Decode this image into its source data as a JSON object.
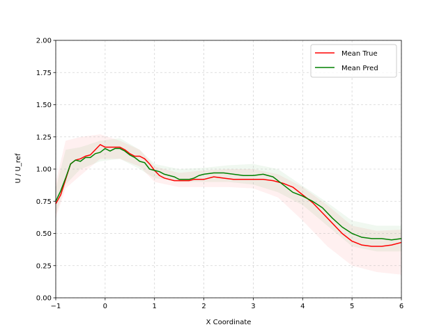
{
  "chart_data": {
    "type": "line",
    "title": "",
    "xlabel": "X Coordinate",
    "ylabel": "U / U_ref",
    "xlim": [
      -1,
      6
    ],
    "ylim": [
      0,
      2
    ],
    "xticks": [
      -1,
      0,
      1,
      2,
      3,
      4,
      5,
      6
    ],
    "xtick_labels": [
      "−1",
      "0",
      "1",
      "2",
      "3",
      "4",
      "5",
      "6"
    ],
    "yticks": [
      0,
      0.25,
      0.5,
      0.75,
      1.0,
      1.25,
      1.5,
      1.75,
      2.0
    ],
    "ytick_labels": [
      "0.00",
      "0.25",
      "0.50",
      "0.75",
      "1.00",
      "1.25",
      "1.50",
      "1.75",
      "2.00"
    ],
    "grid": true,
    "legend_position": "top-right",
    "background_bands": [
      {
        "color": "#ff0000",
        "opacity": 0.06,
        "upper": [
          [
            -1,
            0.9
          ],
          [
            -0.8,
            1.22
          ],
          [
            -0.5,
            1.25
          ],
          [
            -0.1,
            1.27
          ],
          [
            0.3,
            1.22
          ],
          [
            0.7,
            1.15
          ],
          [
            1.0,
            1.02
          ],
          [
            1.5,
            0.97
          ],
          [
            2.0,
            0.99
          ],
          [
            2.5,
            1.0
          ],
          [
            3.0,
            1.0
          ],
          [
            3.5,
            0.96
          ],
          [
            4.0,
            0.86
          ],
          [
            4.5,
            0.72
          ],
          [
            5.0,
            0.56
          ],
          [
            5.5,
            0.52
          ],
          [
            6.0,
            0.53
          ]
        ],
        "lower": [
          [
            -1,
            0.62
          ],
          [
            -0.8,
            0.85
          ],
          [
            -0.5,
            0.95
          ],
          [
            -0.1,
            1.08
          ],
          [
            0.3,
            1.08
          ],
          [
            0.7,
            1.02
          ],
          [
            1.0,
            0.9
          ],
          [
            1.5,
            0.86
          ],
          [
            2.0,
            0.86
          ],
          [
            2.5,
            0.86
          ],
          [
            3.0,
            0.85
          ],
          [
            3.5,
            0.78
          ],
          [
            4.0,
            0.6
          ],
          [
            4.5,
            0.4
          ],
          [
            5.0,
            0.25
          ],
          [
            5.5,
            0.2
          ],
          [
            6.0,
            0.18
          ]
        ]
      },
      {
        "color": "#008000",
        "opacity": 0.06,
        "upper": [
          [
            -1,
            0.85
          ],
          [
            -0.8,
            1.15
          ],
          [
            -0.5,
            1.17
          ],
          [
            -0.1,
            1.22
          ],
          [
            0.3,
            1.24
          ],
          [
            0.7,
            1.15
          ],
          [
            1.0,
            1.04
          ],
          [
            1.5,
            1.0
          ],
          [
            2.0,
            1.01
          ],
          [
            2.5,
            1.03
          ],
          [
            3.0,
            1.04
          ],
          [
            3.5,
            1.0
          ],
          [
            4.0,
            0.87
          ],
          [
            4.5,
            0.74
          ],
          [
            5.0,
            0.6
          ],
          [
            5.5,
            0.56
          ],
          [
            6.0,
            0.56
          ]
        ],
        "lower": [
          [
            -1,
            0.65
          ],
          [
            -0.8,
            0.88
          ],
          [
            -0.5,
            1.0
          ],
          [
            -0.1,
            1.06
          ],
          [
            0.3,
            1.08
          ],
          [
            0.7,
            1.0
          ],
          [
            1.0,
            0.93
          ],
          [
            1.5,
            0.9
          ],
          [
            2.0,
            0.9
          ],
          [
            2.5,
            0.9
          ],
          [
            3.0,
            0.88
          ],
          [
            3.5,
            0.82
          ],
          [
            4.0,
            0.72
          ],
          [
            4.5,
            0.56
          ],
          [
            5.0,
            0.4
          ],
          [
            5.5,
            0.36
          ],
          [
            6.0,
            0.36
          ]
        ]
      }
    ],
    "series": [
      {
        "name": "Mean True",
        "color": "#ff0000",
        "x": [
          -1.0,
          -0.9,
          -0.8,
          -0.7,
          -0.6,
          -0.5,
          -0.4,
          -0.3,
          -0.2,
          -0.1,
          0.0,
          0.1,
          0.2,
          0.3,
          0.4,
          0.5,
          0.6,
          0.7,
          0.8,
          0.9,
          1.0,
          1.1,
          1.2,
          1.3,
          1.4,
          1.5,
          1.6,
          1.7,
          1.8,
          1.9,
          2.0,
          2.2,
          2.4,
          2.6,
          2.8,
          3.0,
          3.2,
          3.4,
          3.6,
          3.8,
          4.0,
          4.2,
          4.4,
          4.6,
          4.8,
          5.0,
          5.2,
          5.4,
          5.6,
          5.8,
          6.0
        ],
        "y": [
          0.73,
          0.8,
          0.92,
          1.04,
          1.07,
          1.08,
          1.1,
          1.11,
          1.15,
          1.19,
          1.17,
          1.17,
          1.17,
          1.17,
          1.15,
          1.12,
          1.1,
          1.1,
          1.08,
          1.04,
          0.99,
          0.95,
          0.93,
          0.92,
          0.91,
          0.91,
          0.91,
          0.91,
          0.92,
          0.92,
          0.92,
          0.94,
          0.93,
          0.92,
          0.92,
          0.92,
          0.92,
          0.91,
          0.89,
          0.86,
          0.8,
          0.74,
          0.66,
          0.58,
          0.5,
          0.44,
          0.41,
          0.4,
          0.4,
          0.41,
          0.43
        ]
      },
      {
        "name": "Mean Pred",
        "color": "#008000",
        "x": [
          -1.0,
          -0.9,
          -0.8,
          -0.7,
          -0.6,
          -0.5,
          -0.4,
          -0.3,
          -0.2,
          -0.1,
          0.0,
          0.1,
          0.2,
          0.3,
          0.4,
          0.5,
          0.6,
          0.7,
          0.8,
          0.9,
          1.0,
          1.1,
          1.2,
          1.3,
          1.4,
          1.5,
          1.6,
          1.7,
          1.8,
          1.9,
          2.0,
          2.2,
          2.4,
          2.6,
          2.8,
          3.0,
          3.2,
          3.4,
          3.6,
          3.8,
          4.0,
          4.2,
          4.4,
          4.6,
          4.8,
          5.0,
          5.2,
          5.4,
          5.6,
          5.8,
          6.0
        ],
        "y": [
          0.75,
          0.83,
          0.93,
          1.04,
          1.07,
          1.06,
          1.09,
          1.09,
          1.12,
          1.13,
          1.16,
          1.14,
          1.16,
          1.16,
          1.14,
          1.11,
          1.09,
          1.06,
          1.05,
          1.0,
          0.99,
          0.98,
          0.96,
          0.95,
          0.94,
          0.92,
          0.92,
          0.92,
          0.93,
          0.95,
          0.96,
          0.97,
          0.97,
          0.96,
          0.95,
          0.95,
          0.96,
          0.94,
          0.88,
          0.82,
          0.79,
          0.75,
          0.7,
          0.62,
          0.55,
          0.5,
          0.47,
          0.46,
          0.46,
          0.45,
          0.46
        ]
      }
    ]
  }
}
